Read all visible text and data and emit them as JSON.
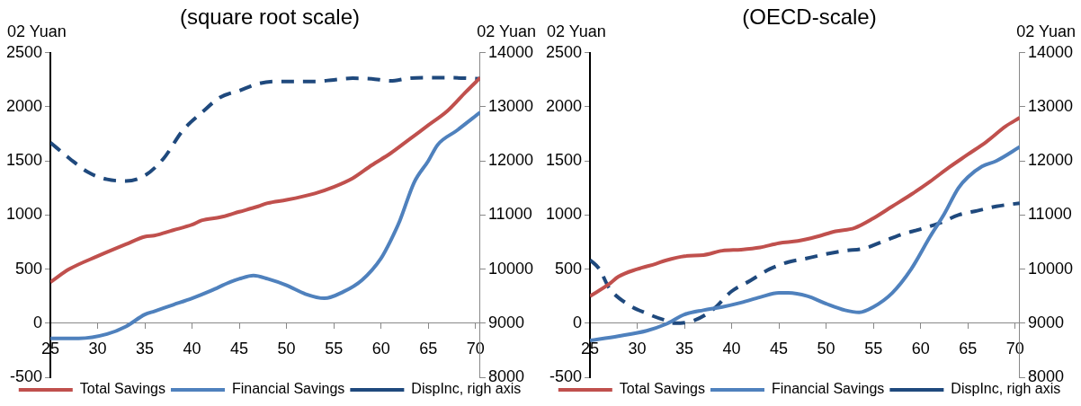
{
  "chart_data": [
    {
      "type": "line",
      "title": "(square root scale)",
      "ylabel": "02 Yuan",
      "y2label": "02 Yuan",
      "xlim": [
        25,
        70.5
      ],
      "xticks": [
        25,
        30,
        35,
        40,
        45,
        50,
        55,
        60,
        65,
        70
      ],
      "ylim": [
        -500,
        2500
      ],
      "yticks": [
        -500,
        0,
        500,
        1000,
        1500,
        2000,
        2500
      ],
      "y2lim": [
        8000,
        14000
      ],
      "y2ticks": [
        8000,
        9000,
        10000,
        11000,
        12000,
        13000,
        14000
      ],
      "legend": "bottom",
      "grid": false,
      "marker": "none",
      "series": [
        {
          "name": "Total Savings",
          "color": "#c0504d",
          "x": [
            25,
            27,
            30,
            33,
            35,
            36,
            38,
            40,
            41,
            43,
            45,
            47,
            48,
            50,
            53,
            55,
            57,
            59,
            61,
            63,
            65,
            67,
            69,
            70.5
          ],
          "values": [
            380,
            500,
            620,
            730,
            800,
            810,
            860,
            910,
            950,
            980,
            1030,
            1080,
            1110,
            1140,
            1200,
            1260,
            1340,
            1460,
            1570,
            1700,
            1830,
            1960,
            2140,
            2270
          ]
        },
        {
          "name": "Financial Savings",
          "color": "#4f81bd",
          "x": [
            25,
            28,
            31,
            33,
            35,
            36,
            38,
            40,
            42,
            44,
            45,
            46.5,
            48,
            50,
            52,
            54,
            56,
            58,
            60,
            61,
            62,
            63.5,
            65,
            66,
            68,
            70.5
          ],
          "values": [
            -140,
            -140,
            -100,
            -30,
            80,
            110,
            170,
            230,
            300,
            380,
            410,
            440,
            410,
            350,
            270,
            230,
            290,
            400,
            600,
            760,
            950,
            1300,
            1500,
            1650,
            1780,
            1950
          ]
        },
        {
          "name": "DispInc, righ axis",
          "color": "#1f497d",
          "axis": "y2",
          "line_style": "dashed",
          "x": [
            25,
            27,
            29,
            31,
            33,
            35,
            37,
            39,
            41,
            43,
            45,
            47,
            49,
            51,
            53,
            55,
            57,
            59,
            61,
            63,
            65,
            67,
            70.5
          ],
          "values": [
            12340,
            12050,
            11790,
            11660,
            11630,
            11730,
            12050,
            12560,
            12890,
            13180,
            13300,
            13430,
            13470,
            13470,
            13470,
            13500,
            13530,
            13520,
            13480,
            13530,
            13540,
            13540,
            13520
          ]
        }
      ]
    },
    {
      "type": "line",
      "title": "(OECD-scale)",
      "ylabel": "02 Yuan",
      "y2label": "02 Yuan",
      "xlim": [
        25,
        70.5
      ],
      "xticks": [
        25,
        30,
        35,
        40,
        45,
        50,
        55,
        60,
        65,
        70
      ],
      "ylim": [
        -500,
        2500
      ],
      "yticks": [
        -500,
        0,
        500,
        1000,
        1500,
        2000,
        2500
      ],
      "y2lim": [
        8000,
        14000
      ],
      "y2ticks": [
        8000,
        9000,
        10000,
        11000,
        12000,
        13000,
        14000
      ],
      "legend": "bottom",
      "grid": false,
      "marker": "none",
      "series": [
        {
          "name": "Total Savings",
          "color": "#c0504d",
          "x": [
            25,
            27,
            28,
            30,
            32,
            33,
            35,
            37,
            39,
            41,
            43,
            45,
            47,
            49,
            51,
            53,
            55,
            57,
            59,
            61,
            63,
            65,
            67,
            69,
            70.5
          ],
          "values": [
            250,
            360,
            430,
            500,
            550,
            580,
            620,
            630,
            670,
            680,
            700,
            740,
            760,
            800,
            850,
            880,
            970,
            1080,
            1190,
            1310,
            1440,
            1560,
            1680,
            1820,
            1900
          ]
        },
        {
          "name": "Financial Savings",
          "color": "#4f81bd",
          "x": [
            25,
            28,
            31,
            33,
            35,
            37,
            39,
            41,
            43,
            45,
            46,
            48,
            50,
            52,
            53.5,
            55,
            57,
            59,
            61,
            62.5,
            64,
            65,
            66.5,
            68,
            70.5
          ],
          "values": [
            -160,
            -120,
            -70,
            -10,
            80,
            120,
            150,
            190,
            240,
            280,
            280,
            250,
            180,
            120,
            100,
            150,
            280,
            500,
            800,
            1010,
            1250,
            1350,
            1450,
            1500,
            1630
          ]
        },
        {
          "name": "DispInc, righ axis",
          "color": "#1f497d",
          "axis": "y2",
          "line_style": "dashed",
          "x": [
            25,
            26,
            27,
            29,
            31,
            33,
            34,
            36,
            38,
            40,
            42,
            44,
            46,
            48,
            50,
            52,
            54,
            56,
            58,
            60,
            62,
            64,
            66,
            68,
            70.5
          ],
          "values": [
            10170,
            10000,
            9660,
            9350,
            9180,
            9050,
            9000,
            9050,
            9250,
            9590,
            9790,
            10000,
            10130,
            10200,
            10280,
            10340,
            10380,
            10510,
            10640,
            10740,
            10850,
            11000,
            11080,
            11160,
            11220
          ]
        }
      ]
    }
  ]
}
